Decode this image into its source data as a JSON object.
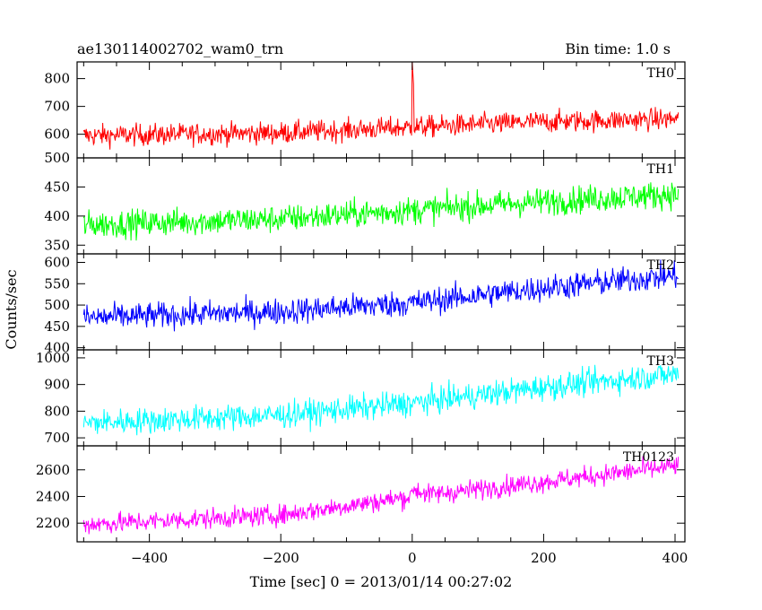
{
  "chart_data": {
    "type": "line",
    "title": "ae130114002702_wam0_trn",
    "subtitle": "Bin time: 1.0 s",
    "xlabel": "Time [sec] 0 = 2013/01/14 00:27:02",
    "ylabel": "Counts/sec",
    "xlim": [
      -510,
      415
    ],
    "x_start": -500,
    "x_end": 405,
    "x_ticks": [
      -400,
      -200,
      0,
      200,
      400
    ],
    "x_tick_labels": [
      "−400",
      "−200",
      "0",
      "200",
      "400"
    ],
    "grid": false,
    "series": [
      {
        "name": "TH0",
        "color": "#ff0000",
        "ylim": [
          515,
          860
        ],
        "yticks": [
          600,
          700,
          800
        ],
        "trend": [
          [
            -500,
            595
          ],
          [
            -200,
            605
          ],
          [
            0,
            625
          ],
          [
            200,
            645
          ],
          [
            405,
            655
          ]
        ],
        "noise": 28,
        "spike": {
          "x": 0,
          "y": 860
        }
      },
      {
        "name": "TH1",
        "color": "#00ff00",
        "ylim": [
          335,
          500
        ],
        "yticks": [
          350,
          400,
          450,
          500
        ],
        "trend": [
          [
            -500,
            385
          ],
          [
            -200,
            395
          ],
          [
            0,
            410
          ],
          [
            200,
            425
          ],
          [
            405,
            438
          ]
        ],
        "noise": 17
      },
      {
        "name": "TH2",
        "color": "#0000ff",
        "ylim": [
          395,
          620
        ],
        "yticks": [
          400,
          450,
          500,
          550,
          600
        ],
        "trend": [
          [
            -500,
            470
          ],
          [
            -200,
            485
          ],
          [
            0,
            505
          ],
          [
            200,
            540
          ],
          [
            405,
            570
          ]
        ],
        "noise": 22
      },
      {
        "name": "TH3",
        "color": "#00ffff",
        "ylim": [
          670,
          1030
        ],
        "yticks": [
          700,
          800,
          900,
          1000
        ],
        "trend": [
          [
            -500,
            755
          ],
          [
            -200,
            785
          ],
          [
            0,
            830
          ],
          [
            200,
            890
          ],
          [
            405,
            940
          ]
        ],
        "noise": 35
      },
      {
        "name": "TH0123",
        "color": "#ff00ff",
        "ylim": [
          2060,
          2780
        ],
        "yticks": [
          2200,
          2400,
          2600
        ],
        "trend": [
          [
            -500,
            2190
          ],
          [
            -200,
            2260
          ],
          [
            0,
            2400
          ],
          [
            200,
            2510
          ],
          [
            405,
            2630
          ]
        ],
        "noise": 55,
        "step": {
          "x": 0,
          "dy": 60
        }
      }
    ]
  }
}
